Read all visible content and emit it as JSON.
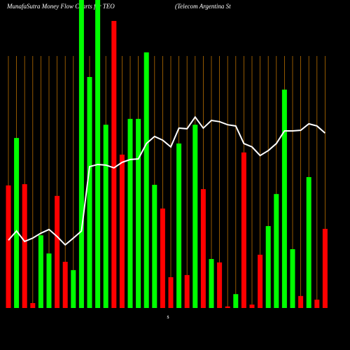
{
  "chart_data": {
    "type": "bar",
    "title": "MunafaSutra  Money Flow  Charts for TEO",
    "subtitle": "(Telecom Argentina  St",
    "x_label": "$",
    "categories": [
      null,
      null,
      null,
      null,
      null,
      null,
      null,
      null,
      null,
      null,
      null,
      null,
      null,
      null,
      null,
      null,
      null,
      null,
      null,
      null,
      null,
      null,
      null,
      null,
      null,
      null,
      null,
      null,
      null,
      null,
      null,
      null,
      null,
      null,
      null,
      null,
      null,
      null,
      null,
      null
    ],
    "values": [
      39.8,
      55.2,
      40.2,
      1.6,
      23.6,
      17.7,
      36.4,
      15,
      12.3,
      100,
      75,
      100,
      59.5,
      93.2,
      49.8,
      61.4,
      61.4,
      83,
      40,
      32.3,
      10,
      53.4,
      10.7,
      59.5,
      38.6,
      15.9,
      14.8,
      0.5,
      4.5,
      50.5,
      1.1,
      17.3,
      26.6,
      37,
      70.9,
      19.1,
      3.9,
      42.5,
      2.7,
      25.7
    ],
    "colors": [
      "#ff0000",
      "#00ff00",
      "#ff0000",
      "#ff0000",
      "#00ff00",
      "#00ff00",
      "#ff0000",
      "#ff0000",
      "#00ff00",
      "#00ff00",
      "#00ff00",
      "#00ff00",
      "#00ff00",
      "#ff0000",
      "#ff0000",
      "#00ff00",
      "#00ff00",
      "#00ff00",
      "#00ff00",
      "#ff0000",
      "#ff0000",
      "#00ff00",
      "#ff0000",
      "#00ff00",
      "#ff0000",
      "#00ff00",
      "#ff0000",
      "#ff0000",
      "#00ff00",
      "#ff0000",
      "#ff0000",
      "#ff0000",
      "#00ff00",
      "#00ff00",
      "#00ff00",
      "#00ff00",
      "#ff0000",
      "#00ff00",
      "#ff0000",
      "#ff0000"
    ],
    "line": {
      "color": "#ffffff",
      "values": [
        22,
        25,
        21.6,
        22.7,
        24.3,
        25.5,
        23.2,
        20.5,
        22.7,
        25,
        45.9,
        46.6,
        46.4,
        45.5,
        47.3,
        48.2,
        48.4,
        53.4,
        55.7,
        54.5,
        52.3,
        58.4,
        58.2,
        62,
        58.4,
        60.9,
        60.5,
        59.5,
        59.1,
        53.4,
        52.3,
        49.5,
        51.1,
        53.4,
        57.5,
        57.5,
        57.7,
        59.8,
        59.1,
        56.8
      ]
    },
    "ylim": [
      0,
      100
    ],
    "grid": true,
    "grid_color": "#b86e00"
  }
}
